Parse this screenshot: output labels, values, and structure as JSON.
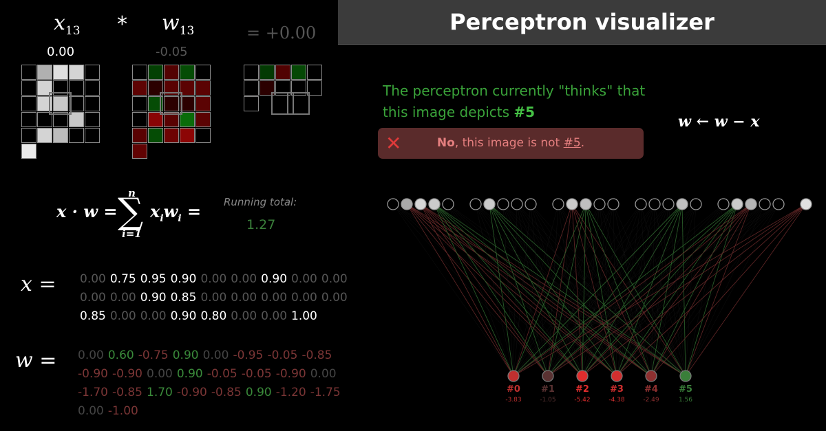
{
  "header": {
    "title": "Perceptron visualizer",
    "x_symbol": "x",
    "x_sub": "13",
    "times": "*",
    "w_symbol": "w",
    "w_sub": "13",
    "product": "= +0.00",
    "x_value": "0.00",
    "w_value": "-0.05"
  },
  "prediction": {
    "text": "The perceptron currently \"thinks\" that",
    "text2": "this image depicts",
    "label": "#5"
  },
  "feedback": {
    "no": "No",
    "rest": ", this image is not ",
    "label": "#5",
    "period": "."
  },
  "update_rule": "w ← w − x",
  "formula": {
    "lhs": "x · w =",
    "sum_top": "n",
    "sum_bottom": "i=1",
    "term": "x",
    "term_i": "i",
    "term_w": "w",
    "eq": "=",
    "running_label": "Running total:",
    "running_value": "1.27"
  },
  "x_label": "x =",
  "w_label": "w =",
  "x_values": [
    0.0,
    0.75,
    0.95,
    0.9,
    0.0,
    0.0,
    0.9,
    0.0,
    0.0,
    0.0,
    0.0,
    0.9,
    0.85,
    0.0,
    0.0,
    0.0,
    0.0,
    0.0,
    0.85,
    0.0,
    0.0,
    0.9,
    0.8,
    0.0,
    0.0,
    1.0
  ],
  "w_values": [
    0.0,
    0.6,
    -0.75,
    0.9,
    0.0,
    -0.95,
    -0.05,
    -0.85,
    -0.9,
    -0.9,
    0.0,
    0.9,
    -0.05,
    -0.05,
    -0.9,
    0.0,
    -1.7,
    -0.85,
    1.7,
    -0.9,
    -0.85,
    0.9,
    -1.2,
    -1.75,
    0.0,
    -1.0
  ],
  "outputs": [
    {
      "label": "#0",
      "value": "-3.83",
      "color": "#c0302f"
    },
    {
      "label": "#1",
      "value": "-1.05",
      "color": "#5a3232"
    },
    {
      "label": "#2",
      "value": "-5.42",
      "color": "#e02d2d"
    },
    {
      "label": "#3",
      "value": "-4.38",
      "color": "#d22f2f"
    },
    {
      "label": "#4",
      "value": "-2.49",
      "color": "#8e3030"
    },
    {
      "label": "#5",
      "value": "1.56",
      "color": "#3a7f3a"
    }
  ],
  "colors": {
    "accent_green": "#3aa33a",
    "error_red": "#e03a3a",
    "feedback_bg": "#5a2b2b"
  }
}
